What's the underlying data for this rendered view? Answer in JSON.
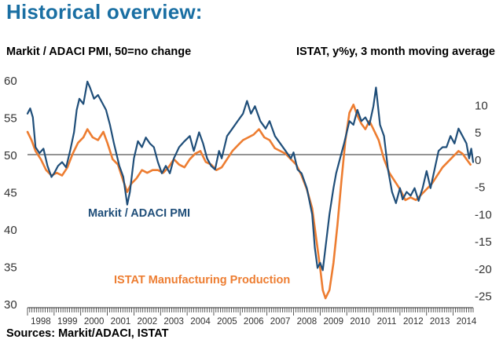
{
  "header": {
    "title": "Historical overview:",
    "left_axis_label": "Markit / ADACI PMI, 50=no change",
    "right_axis_label": "ISTAT, y%y, 3 month moving average",
    "source": "Sources: Markit/ADACI, ISTAT"
  },
  "colors": {
    "title": "#1a6fa3",
    "pmi": "#1f4e79",
    "istat": "#ed7d31",
    "reference_line": "#555555"
  },
  "chart_data": {
    "type": "line",
    "xlim": [
      1998,
      2014.75
    ],
    "ylim_left": [
      30,
      60
    ],
    "ylim_right": [
      -26.5,
      14.5
    ],
    "yticks_left": [
      30,
      35,
      40,
      45,
      50,
      55,
      60
    ],
    "yticks_right": [
      10,
      5,
      0,
      -5,
      -10,
      -15,
      -20,
      -25
    ],
    "year_labels": [
      "1998",
      "1999",
      "2000",
      "2001",
      "2002",
      "2003",
      "2004",
      "2005",
      "2006",
      "2007",
      "2008",
      "2009",
      "2010",
      "2011",
      "2012",
      "2013",
      "2014"
    ],
    "reference_line": {
      "axis": "left",
      "value": 50
    },
    "series": [
      {
        "name": "Markit / ADACI PMI",
        "axis": "left",
        "label": "Markit / ADACI PMI",
        "points": [
          [
            1998.0,
            55.5
          ],
          [
            1998.1,
            56.2
          ],
          [
            1998.2,
            55.0
          ],
          [
            1998.3,
            51.0
          ],
          [
            1998.45,
            50.2
          ],
          [
            1998.6,
            50.8
          ],
          [
            1998.75,
            48.5
          ],
          [
            1998.9,
            47.0
          ],
          [
            1999.0,
            47.5
          ],
          [
            1999.15,
            48.5
          ],
          [
            1999.3,
            49.0
          ],
          [
            1999.45,
            48.3
          ],
          [
            1999.6,
            50.5
          ],
          [
            1999.75,
            53.0
          ],
          [
            1999.85,
            56.0
          ],
          [
            1999.95,
            57.5
          ],
          [
            2000.1,
            56.8
          ],
          [
            2000.25,
            59.8
          ],
          [
            2000.35,
            59.0
          ],
          [
            2000.5,
            57.5
          ],
          [
            2000.65,
            58.0
          ],
          [
            2000.8,
            57.0
          ],
          [
            2000.95,
            56.0
          ],
          [
            2001.1,
            54.0
          ],
          [
            2001.25,
            51.5
          ],
          [
            2001.45,
            48.5
          ],
          [
            2001.6,
            47.0
          ],
          [
            2001.75,
            43.3
          ],
          [
            2001.85,
            45.0
          ],
          [
            2002.0,
            49.5
          ],
          [
            2002.15,
            51.8
          ],
          [
            2002.3,
            51.0
          ],
          [
            2002.45,
            52.3
          ],
          [
            2002.6,
            51.5
          ],
          [
            2002.75,
            51.0
          ],
          [
            2002.9,
            49.0
          ],
          [
            2003.05,
            47.5
          ],
          [
            2003.2,
            48.5
          ],
          [
            2003.35,
            47.5
          ],
          [
            2003.5,
            49.5
          ],
          [
            2003.7,
            51.0
          ],
          [
            2003.9,
            51.8
          ],
          [
            2004.1,
            52.5
          ],
          [
            2004.25,
            50.5
          ],
          [
            2004.45,
            53.0
          ],
          [
            2004.6,
            51.5
          ],
          [
            2004.75,
            49.5
          ],
          [
            2004.9,
            48.5
          ],
          [
            2005.05,
            48.0
          ],
          [
            2005.2,
            50.5
          ],
          [
            2005.3,
            49.5
          ],
          [
            2005.5,
            52.5
          ],
          [
            2005.7,
            53.5
          ],
          [
            2005.9,
            54.5
          ],
          [
            2006.1,
            55.5
          ],
          [
            2006.25,
            57.2
          ],
          [
            2006.4,
            55.5
          ],
          [
            2006.55,
            56.5
          ],
          [
            2006.75,
            54.5
          ],
          [
            2006.95,
            53.5
          ],
          [
            2007.1,
            54.5
          ],
          [
            2007.3,
            52.5
          ],
          [
            2007.5,
            51.5
          ],
          [
            2007.7,
            50.5
          ],
          [
            2007.9,
            49.5
          ],
          [
            2008.0,
            50.3
          ],
          [
            2008.15,
            48.0
          ],
          [
            2008.3,
            47.5
          ],
          [
            2008.5,
            45.5
          ],
          [
            2008.7,
            42.0
          ],
          [
            2008.8,
            37.5
          ],
          [
            2008.9,
            34.8
          ],
          [
            2009.0,
            35.5
          ],
          [
            2009.1,
            34.5
          ],
          [
            2009.2,
            37.5
          ],
          [
            2009.35,
            42.0
          ],
          [
            2009.5,
            45.5
          ],
          [
            2009.6,
            47.5
          ],
          [
            2009.75,
            49.5
          ],
          [
            2009.9,
            51.5
          ],
          [
            2010.1,
            54.5
          ],
          [
            2010.25,
            54.0
          ],
          [
            2010.4,
            56.0
          ],
          [
            2010.55,
            54.5
          ],
          [
            2010.7,
            55.0
          ],
          [
            2010.85,
            54.0
          ],
          [
            2011.0,
            56.5
          ],
          [
            2011.1,
            59.0
          ],
          [
            2011.25,
            54.0
          ],
          [
            2011.4,
            52.5
          ],
          [
            2011.55,
            48.0
          ],
          [
            2011.7,
            45.0
          ],
          [
            2011.85,
            43.5
          ],
          [
            2012.0,
            45.5
          ],
          [
            2012.1,
            44.0
          ],
          [
            2012.25,
            45.0
          ],
          [
            2012.4,
            44.5
          ],
          [
            2012.55,
            45.5
          ],
          [
            2012.7,
            43.8
          ],
          [
            2012.85,
            45.5
          ],
          [
            2013.0,
            47.8
          ],
          [
            2013.15,
            45.5
          ],
          [
            2013.3,
            48.0
          ],
          [
            2013.45,
            50.5
          ],
          [
            2013.6,
            51.0
          ],
          [
            2013.75,
            51.0
          ],
          [
            2013.9,
            52.5
          ],
          [
            2014.05,
            51.5
          ],
          [
            2014.2,
            53.5
          ],
          [
            2014.35,
            52.5
          ],
          [
            2014.5,
            51.5
          ],
          [
            2014.6,
            49.5
          ],
          [
            2014.68,
            50.8
          ],
          [
            2014.75,
            49.0
          ]
        ]
      },
      {
        "name": "ISTAT Manufacturing Production",
        "axis": "right",
        "label": "ISTAT Manufacturing Production",
        "points": [
          [
            1998.0,
            5.0
          ],
          [
            1998.15,
            3.5
          ],
          [
            1998.3,
            1.5
          ],
          [
            1998.5,
            0.0
          ],
          [
            1998.7,
            -2.0
          ],
          [
            1998.9,
            -3.0
          ],
          [
            1999.1,
            -2.5
          ],
          [
            1999.3,
            -3.0
          ],
          [
            1999.5,
            -1.5
          ],
          [
            1999.7,
            1.0
          ],
          [
            1999.9,
            3.0
          ],
          [
            2000.1,
            4.0
          ],
          [
            2000.25,
            5.5
          ],
          [
            2000.45,
            4.0
          ],
          [
            2000.65,
            3.5
          ],
          [
            2000.85,
            5.0
          ],
          [
            2001.0,
            3.0
          ],
          [
            2001.2,
            0.0
          ],
          [
            2001.4,
            -1.0
          ],
          [
            2001.6,
            -4.0
          ],
          [
            2001.75,
            -6.0
          ],
          [
            2001.9,
            -4.5
          ],
          [
            2002.1,
            -3.5
          ],
          [
            2002.3,
            -2.0
          ],
          [
            2002.5,
            -2.5
          ],
          [
            2002.7,
            -2.0
          ],
          [
            2002.9,
            -2.0
          ],
          [
            2003.1,
            -2.5
          ],
          [
            2003.3,
            -1.5
          ],
          [
            2003.5,
            0.0
          ],
          [
            2003.7,
            -1.0
          ],
          [
            2003.9,
            -1.5
          ],
          [
            2004.1,
            0.0
          ],
          [
            2004.3,
            1.0
          ],
          [
            2004.5,
            1.5
          ],
          [
            2004.7,
            -0.5
          ],
          [
            2004.9,
            -1.0
          ],
          [
            2005.1,
            -2.0
          ],
          [
            2005.3,
            -1.5
          ],
          [
            2005.5,
            0.0
          ],
          [
            2005.7,
            1.5
          ],
          [
            2005.9,
            2.5
          ],
          [
            2006.1,
            3.5
          ],
          [
            2006.3,
            4.0
          ],
          [
            2006.5,
            4.5
          ],
          [
            2006.7,
            5.5
          ],
          [
            2006.9,
            4.0
          ],
          [
            2007.1,
            3.5
          ],
          [
            2007.3,
            2.0
          ],
          [
            2007.5,
            1.5
          ],
          [
            2007.7,
            1.0
          ],
          [
            2007.9,
            0.0
          ],
          [
            2008.1,
            -1.0
          ],
          [
            2008.3,
            -3.0
          ],
          [
            2008.5,
            -5.5
          ],
          [
            2008.7,
            -9.0
          ],
          [
            2008.85,
            -14.5
          ],
          [
            2009.0,
            -20.0
          ],
          [
            2009.1,
            -24.0
          ],
          [
            2009.2,
            -25.5
          ],
          [
            2009.35,
            -24.0
          ],
          [
            2009.5,
            -19.0
          ],
          [
            2009.65,
            -12.0
          ],
          [
            2009.8,
            -4.0
          ],
          [
            2009.95,
            3.5
          ],
          [
            2010.1,
            8.5
          ],
          [
            2010.25,
            10.0
          ],
          [
            2010.4,
            8.0
          ],
          [
            2010.55,
            6.5
          ],
          [
            2010.7,
            5.5
          ],
          [
            2010.85,
            7.0
          ],
          [
            2011.0,
            5.5
          ],
          [
            2011.2,
            3.5
          ],
          [
            2011.4,
            0.0
          ],
          [
            2011.6,
            -2.5
          ],
          [
            2011.8,
            -4.0
          ],
          [
            2012.0,
            -5.5
          ],
          [
            2012.2,
            -7.5
          ],
          [
            2012.4,
            -7.0
          ],
          [
            2012.6,
            -7.5
          ],
          [
            2012.8,
            -6.5
          ],
          [
            2013.0,
            -5.5
          ],
          [
            2013.2,
            -4.5
          ],
          [
            2013.4,
            -3.0
          ],
          [
            2013.6,
            -1.5
          ],
          [
            2013.8,
            -0.5
          ],
          [
            2014.0,
            0.5
          ],
          [
            2014.2,
            1.5
          ],
          [
            2014.35,
            1.0
          ],
          [
            2014.5,
            0.0
          ],
          [
            2014.65,
            -1.0
          ]
        ]
      }
    ]
  }
}
